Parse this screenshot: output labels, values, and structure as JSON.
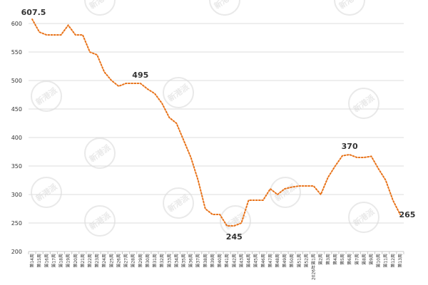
{
  "chart_data": {
    "type": "line",
    "title": "",
    "xlabel": "",
    "ylabel": "",
    "ylim": [
      200,
      600
    ],
    "yticks": [
      200,
      250,
      300,
      350,
      400,
      450,
      500,
      550,
      600
    ],
    "grid": true,
    "legend": "none",
    "categories": [
      "第14周",
      "第15周",
      "第16周",
      "第17周",
      "第18周",
      "第19周",
      "第20周",
      "第21周",
      "第22周",
      "第23周",
      "第24周",
      "第25周",
      "第26周",
      "第27周",
      "第28周",
      "第29周",
      "第30周",
      "第31周",
      "第32周",
      "第33周",
      "第34周",
      "第35周",
      "第36周",
      "第37周",
      "第38周",
      "第39周",
      "第40周",
      "第41周",
      "第42周",
      "第43周",
      "第44周",
      "第45周",
      "第46周",
      "第47周",
      "第48周",
      "第49周",
      "第50周",
      "第51周",
      "第52周",
      "2026年第1周",
      "第2周",
      "第3周",
      "第4周",
      "第5周",
      "第6周",
      "第7周",
      "第8周",
      "第9周",
      "第10周",
      "第11周",
      "第12周",
      "第13周"
    ],
    "series": [
      {
        "color": "#e8731a",
        "values": [
          607.5,
          585,
          580,
          580,
          580,
          597,
          580,
          580,
          550,
          545,
          515,
          500,
          490,
          495,
          495,
          495,
          485,
          477,
          460,
          435,
          425,
          395,
          365,
          325,
          275,
          265,
          265,
          245,
          245,
          250,
          290,
          290,
          290,
          310,
          300,
          310,
          313,
          315,
          315,
          315,
          300,
          330,
          350,
          368,
          370,
          365,
          365,
          367,
          345,
          325,
          290,
          265
        ]
      }
    ],
    "data_labels": [
      {
        "index": 0,
        "text": "607.5"
      },
      {
        "index": 15,
        "text": "495"
      },
      {
        "index": 28,
        "text": "245"
      },
      {
        "index": 44,
        "text": "370"
      },
      {
        "index": 51,
        "text": "265"
      }
    ],
    "watermark": "新港派"
  }
}
